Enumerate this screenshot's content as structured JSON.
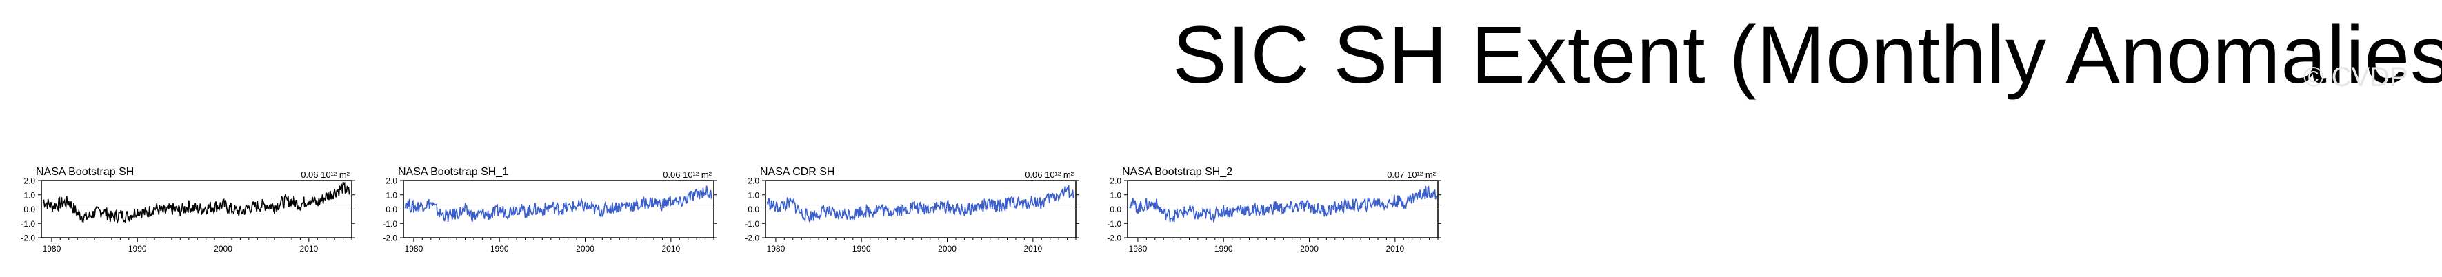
{
  "title": "SIC SH Extent (Monthly Anomalies)",
  "watermark": "© CVDP",
  "colors": {
    "black_series": "#000000",
    "blue_series": "#3a5fcd"
  },
  "chart_data": [
    {
      "type": "line",
      "title": "NASA Bootstrap SH",
      "annotation": "0.06 10¹² m²",
      "color": "#000000",
      "xlim": [
        1978.8,
        2015.0
      ],
      "ylim": [
        -2.0,
        2.0
      ],
      "xticks": [
        1980,
        1990,
        2000,
        2010
      ],
      "yticks": [
        2.0,
        1.0,
        0.0,
        -1.0,
        -2.0
      ],
      "ytick_labels": [
        "2.0",
        "1.0",
        "0.0",
        "-1.0",
        "-2.0"
      ],
      "series": [
        {
          "x": [
            1979,
            1980,
            1981,
            1982,
            1983,
            1984,
            1985,
            1986,
            1987,
            1988,
            1989,
            1990,
            1991,
            1992,
            1993,
            1994,
            1995,
            1996,
            1997,
            1998,
            1999,
            2000,
            2001,
            2002,
            2003,
            2004,
            2005,
            2006,
            2007,
            2008,
            2009,
            2010,
            2011,
            2012,
            2013,
            2014,
            2014.8
          ],
          "y": [
            0.6,
            0.2,
            0.4,
            0.5,
            -0.3,
            -0.6,
            -0.3,
            -0.1,
            -0.6,
            -0.4,
            -0.5,
            -0.1,
            -0.3,
            0.1,
            -0.2,
            0.0,
            -0.1,
            0.2,
            0.0,
            0.1,
            0.2,
            0.3,
            0.0,
            -0.2,
            0.1,
            0.2,
            0.3,
            0.2,
            0.5,
            0.6,
            0.3,
            0.7,
            0.4,
            0.9,
            1.2,
            1.5,
            1.1
          ]
        }
      ]
    },
    {
      "type": "line",
      "title": "NASA Bootstrap SH_1",
      "annotation": "0.06 10¹² m²",
      "color": "#3a5fcd",
      "xlim": [
        1978.8,
        2015.0
      ],
      "ylim": [
        -2.0,
        2.0
      ],
      "xticks": [
        1980,
        1990,
        2000,
        2010
      ],
      "yticks": [
        2.0,
        1.0,
        0.0,
        -1.0,
        -2.0
      ],
      "ytick_labels": [
        "2.0",
        "1.0",
        "0.0",
        "-1.0",
        "-2.0"
      ],
      "series": [
        {
          "x": [
            1979,
            1980,
            1981,
            1982,
            1983,
            1984,
            1985,
            1986,
            1987,
            1988,
            1989,
            1990,
            1991,
            1992,
            1993,
            1994,
            1995,
            1996,
            1997,
            1998,
            1999,
            2000,
            2001,
            2002,
            2003,
            2004,
            2005,
            2006,
            2007,
            2008,
            2009,
            2010,
            2011,
            2012,
            2013,
            2014,
            2014.8
          ],
          "y": [
            0.5,
            0.1,
            0.3,
            0.4,
            -0.3,
            -0.5,
            -0.3,
            -0.1,
            -0.5,
            -0.3,
            -0.4,
            -0.1,
            -0.2,
            0.1,
            -0.2,
            0.0,
            -0.1,
            0.2,
            0.0,
            0.1,
            0.2,
            0.2,
            0.0,
            -0.1,
            0.1,
            0.2,
            0.3,
            0.2,
            0.4,
            0.5,
            0.3,
            0.6,
            0.4,
            0.8,
            1.0,
            1.3,
            0.9
          ]
        }
      ]
    },
    {
      "type": "line",
      "title": "NASA CDR SH",
      "annotation": "0.06 10¹² m²",
      "color": "#3a5fcd",
      "xlim": [
        1978.8,
        2015.0
      ],
      "ylim": [
        -2.0,
        2.0
      ],
      "xticks": [
        1980,
        1990,
        2000,
        2010
      ],
      "yticks": [
        2.0,
        1.0,
        0.0,
        -1.0,
        -2.0
      ],
      "ytick_labels": [
        "2.0",
        "1.0",
        "0.0",
        "-1.0",
        "-2.0"
      ],
      "series": [
        {
          "x": [
            1979,
            1980,
            1981,
            1982,
            1983,
            1984,
            1985,
            1986,
            1987,
            1988,
            1989,
            1990,
            1991,
            1992,
            1993,
            1994,
            1995,
            1996,
            1997,
            1998,
            1999,
            2000,
            2001,
            2002,
            2003,
            2004,
            2005,
            2006,
            2007,
            2008,
            2009,
            2010,
            2011,
            2012,
            2013,
            2014,
            2014.8
          ],
          "y": [
            0.5,
            0.1,
            0.3,
            0.4,
            -0.3,
            -0.5,
            -0.3,
            -0.1,
            -0.5,
            -0.3,
            -0.4,
            -0.1,
            -0.2,
            0.1,
            -0.2,
            0.0,
            -0.1,
            0.2,
            0.0,
            0.1,
            0.2,
            0.2,
            0.0,
            -0.1,
            0.1,
            0.2,
            0.3,
            0.2,
            0.4,
            0.5,
            0.3,
            0.6,
            0.4,
            0.8,
            1.0,
            1.3,
            0.9
          ]
        }
      ]
    },
    {
      "type": "line",
      "title": "NASA Bootstrap SH_2",
      "annotation": "0.07 10¹² m²",
      "color": "#3a5fcd",
      "xlim": [
        1978.8,
        2015.0
      ],
      "ylim": [
        -2.0,
        2.0
      ],
      "xticks": [
        1980,
        1990,
        2000,
        2010
      ],
      "yticks": [
        2.0,
        1.0,
        0.0,
        -1.0,
        -2.0
      ],
      "ytick_labels": [
        "2.0",
        "1.0",
        "0.0",
        "-1.0",
        "-2.0"
      ],
      "series": [
        {
          "x": [
            1979,
            1980,
            1981,
            1982,
            1983,
            1984,
            1985,
            1986,
            1987,
            1988,
            1989,
            1990,
            1991,
            1992,
            1993,
            1994,
            1995,
            1996,
            1997,
            1998,
            1999,
            2000,
            2001,
            2002,
            2003,
            2004,
            2005,
            2006,
            2007,
            2008,
            2009,
            2010,
            2011,
            2012,
            2013,
            2014,
            2014.8
          ],
          "y": [
            0.5,
            0.1,
            0.3,
            0.4,
            -0.3,
            -0.5,
            -0.3,
            -0.1,
            -0.5,
            -0.3,
            -0.4,
            -0.1,
            -0.2,
            0.1,
            -0.2,
            0.0,
            -0.1,
            0.2,
            0.0,
            0.1,
            0.2,
            0.2,
            0.0,
            -0.1,
            0.1,
            0.2,
            0.3,
            0.2,
            0.4,
            0.5,
            0.3,
            0.6,
            0.4,
            0.8,
            1.0,
            1.3,
            0.9
          ]
        }
      ]
    }
  ]
}
